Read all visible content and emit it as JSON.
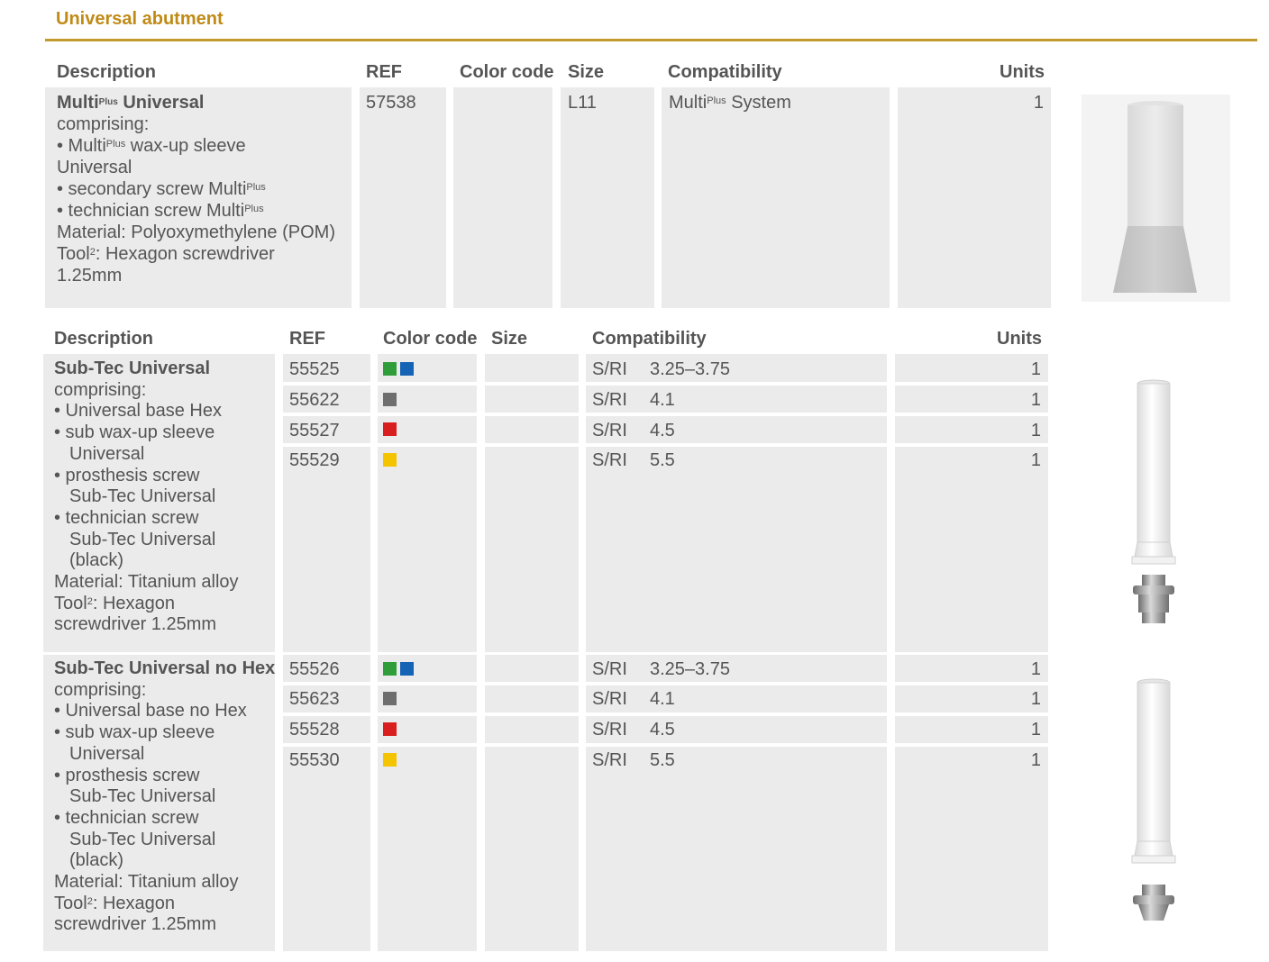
{
  "page": {
    "title": "Universal abutment"
  },
  "table1": {
    "headers": {
      "description": "Description",
      "ref": "REF",
      "color_code": "Color code",
      "size": "Size",
      "compatibility": "Compatibility",
      "units": "Units"
    },
    "product": {
      "name_main": "Multi",
      "name_sup": "Plus",
      "name_rest": " Universal",
      "comprising": "comprising:",
      "item1_a": "• Multi",
      "item1_sup": "Plus",
      "item1_b": " wax-up sleeve",
      "item1_c": "Universal",
      "item2_a": "• secondary screw Multi",
      "item2_sup": "Plus",
      "item3_a": "• technician screw Multi",
      "item3_sup": "Plus",
      "material": "Material: Polyoxymethylene (POM)",
      "tool_a": "Tool",
      "tool_sup": "2",
      "tool_b": ": Hexagon screwdriver",
      "tool_c": "1.25mm",
      "ref": "57538",
      "size": "L11",
      "compat_a": "Multi",
      "compat_sup": "Plus",
      "compat_b": " System",
      "units": "1"
    }
  },
  "table2": {
    "headers": {
      "description": "Description",
      "ref": "REF",
      "color_code": "Color code",
      "size": "Size",
      "compatibility": "Compatibility",
      "units": "Units"
    },
    "groups": [
      {
        "name": "Sub-Tec Universal",
        "lines": [
          "comprising:",
          "• Universal base Hex",
          "• sub wax-up sleeve",
          "Universal",
          "• prosthesis screw",
          "Sub-Tec Universal",
          "• technician screw",
          "Sub-Tec Universal",
          "(black)",
          "Material: Titanium alloy"
        ],
        "tool_a": "Tool",
        "tool_sup": "2",
        "tool_b": ": Hexagon",
        "tool_c": "screwdriver 1.25mm",
        "rows": [
          {
            "ref": "55525",
            "compat_s": "S/RI",
            "compat_v": "3.25–3.75",
            "units": "1"
          },
          {
            "ref": "55622",
            "compat_s": "S/RI",
            "compat_v": "4.1",
            "units": "1"
          },
          {
            "ref": "55527",
            "compat_s": "S/RI",
            "compat_v": "4.5",
            "units": "1"
          },
          {
            "ref": "55529",
            "compat_s": "S/RI",
            "compat_v": "5.5",
            "units": "1"
          }
        ]
      },
      {
        "name": "Sub-Tec Universal no Hex",
        "lines": [
          "comprising:",
          "• Universal base no Hex",
          "• sub wax-up sleeve",
          "Universal",
          "• prosthesis screw",
          "Sub-Tec Universal",
          "• technician screw",
          "Sub-Tec Universal",
          "(black)",
          "Material: Titanium alloy"
        ],
        "tool_a": "Tool",
        "tool_sup": "2",
        "tool_b": ": Hexagon",
        "tool_c": "screwdriver 1.25mm",
        "rows": [
          {
            "ref": "55526",
            "compat_s": "S/RI",
            "compat_v": "3.25–3.75",
            "units": "1"
          },
          {
            "ref": "55623",
            "compat_s": "S/RI",
            "compat_v": "4.1",
            "units": "1"
          },
          {
            "ref": "55528",
            "compat_s": "S/RI",
            "compat_v": "4.5",
            "units": "1"
          },
          {
            "ref": "55530",
            "compat_s": "S/RI",
            "compat_v": "5.5",
            "units": "1"
          }
        ]
      }
    ]
  },
  "colors": {
    "green": "#2f9e3a",
    "blue": "#1463b4",
    "grey": "#6e6e6e",
    "red": "#d81e1e",
    "yellow": "#f5c400",
    "accent": "#c29a2e"
  }
}
